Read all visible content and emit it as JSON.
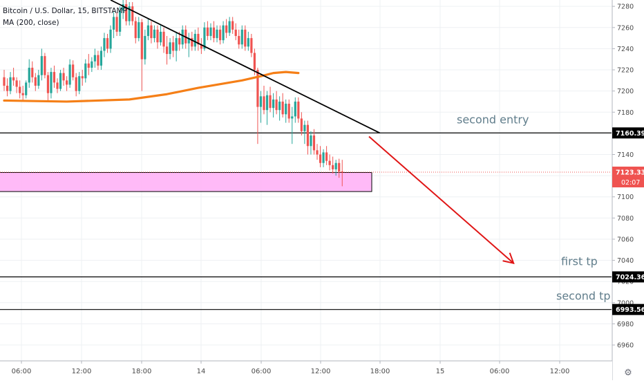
{
  "legend": {
    "symbol": "Bitcoin / U.S. Dollar, 15, BITSTAMP",
    "indicator": "MA (200, close)"
  },
  "colors": {
    "background": "#ffffff",
    "grid": "#eef0f3",
    "up_candle": "#26a69a",
    "down_candle": "#ef5350",
    "ma_line": "#f57f17",
    "trendline": "#000000",
    "arrow": "#e01515",
    "zone_fill": "#ffb3f6",
    "price_label_bg": "#000000",
    "last_price_bg": "#ef5350",
    "annotation_text": "#607d8b",
    "axis_text": "#4a4a4a"
  },
  "chart_data": {
    "type": "candlestick",
    "title": "Bitcoin / U.S. Dollar, 15, BITSTAMP",
    "interval": "15",
    "ylim": [
      6945,
      7286
    ],
    "y_ticks": [
      6960,
      6980,
      7000,
      7020,
      7040,
      7060,
      7080,
      7100,
      7120,
      7140,
      7160,
      7180,
      7200,
      7220,
      7240,
      7260,
      7280
    ],
    "x_ticks": [
      "06:00",
      "12:00",
      "18:00",
      "14",
      "06:00",
      "12:00",
      "18:00",
      "15",
      "06:00",
      "12:00"
    ],
    "grid": true,
    "legend_position": "top-left",
    "candle_count": 110,
    "candles_ohlc": [
      [
        7213,
        7220,
        7200,
        7205
      ],
      [
        7205,
        7212,
        7195,
        7200
      ],
      [
        7200,
        7218,
        7197,
        7213
      ],
      [
        7213,
        7222,
        7205,
        7210
      ],
      [
        7210,
        7213,
        7198,
        7204
      ],
      [
        7204,
        7210,
        7193,
        7198
      ],
      [
        7198,
        7205,
        7190,
        7196
      ],
      [
        7196,
        7210,
        7193,
        7208
      ],
      [
        7208,
        7230,
        7203,
        7222
      ],
      [
        7222,
        7228,
        7208,
        7213
      ],
      [
        7213,
        7217,
        7200,
        7205
      ],
      [
        7205,
        7220,
        7202,
        7215
      ],
      [
        7215,
        7240,
        7210,
        7233
      ],
      [
        7233,
        7236,
        7212,
        7215
      ],
      [
        7215,
        7218,
        7190,
        7198
      ],
      [
        7198,
        7222,
        7193,
        7218
      ],
      [
        7218,
        7224,
        7203,
        7208
      ],
      [
        7208,
        7212,
        7198,
        7202
      ],
      [
        7202,
        7220,
        7200,
        7217
      ],
      [
        7217,
        7222,
        7205,
        7210
      ],
      [
        7210,
        7214,
        7200,
        7206
      ],
      [
        7206,
        7230,
        7203,
        7225
      ],
      [
        7225,
        7229,
        7210,
        7213
      ],
      [
        7213,
        7217,
        7195,
        7200
      ],
      [
        7200,
        7218,
        7197,
        7214
      ],
      [
        7214,
        7220,
        7205,
        7212
      ],
      [
        7212,
        7230,
        7208,
        7226
      ],
      [
        7226,
        7235,
        7215,
        7222
      ],
      [
        7222,
        7232,
        7218,
        7228
      ],
      [
        7228,
        7240,
        7222,
        7234
      ],
      [
        7234,
        7238,
        7220,
        7224
      ],
      [
        7224,
        7242,
        7220,
        7238
      ],
      [
        7238,
        7255,
        7232,
        7250
      ],
      [
        7250,
        7254,
        7236,
        7240
      ],
      [
        7240,
        7262,
        7236,
        7258
      ],
      [
        7258,
        7275,
        7250,
        7270
      ],
      [
        7270,
        7274,
        7252,
        7256
      ],
      [
        7256,
        7280,
        7252,
        7276
      ],
      [
        7276,
        7286,
        7268,
        7282
      ],
      [
        7282,
        7286,
        7262,
        7266
      ],
      [
        7266,
        7284,
        7262,
        7280
      ],
      [
        7280,
        7284,
        7262,
        7266
      ],
      [
        7266,
        7270,
        7245,
        7250
      ],
      [
        7250,
        7270,
        7247,
        7265
      ],
      [
        7265,
        7268,
        7200,
        7230
      ],
      [
        7230,
        7258,
        7225,
        7252
      ],
      [
        7252,
        7268,
        7248,
        7262
      ],
      [
        7262,
        7266,
        7245,
        7250
      ],
      [
        7250,
        7262,
        7246,
        7258
      ],
      [
        7258,
        7262,
        7240,
        7246
      ],
      [
        7246,
        7262,
        7243,
        7256
      ],
      [
        7256,
        7260,
        7236,
        7242
      ],
      [
        7242,
        7252,
        7225,
        7235
      ],
      [
        7235,
        7250,
        7230,
        7246
      ],
      [
        7246,
        7252,
        7232,
        7238
      ],
      [
        7238,
        7255,
        7228,
        7250
      ],
      [
        7250,
        7256,
        7238,
        7244
      ],
      [
        7244,
        7262,
        7240,
        7258
      ],
      [
        7258,
        7262,
        7240,
        7245
      ],
      [
        7245,
        7255,
        7232,
        7250
      ],
      [
        7250,
        7256,
        7238,
        7242
      ],
      [
        7242,
        7258,
        7238,
        7254
      ],
      [
        7254,
        7260,
        7238,
        7244
      ],
      [
        7244,
        7250,
        7235,
        7240
      ],
      [
        7240,
        7265,
        7238,
        7260
      ],
      [
        7260,
        7266,
        7248,
        7252
      ],
      [
        7252,
        7264,
        7248,
        7260
      ],
      [
        7260,
        7266,
        7246,
        7250
      ],
      [
        7250,
        7262,
        7246,
        7258
      ],
      [
        7258,
        7262,
        7244,
        7248
      ],
      [
        7248,
        7266,
        7245,
        7262
      ],
      [
        7262,
        7268,
        7250,
        7255
      ],
      [
        7255,
        7270,
        7252,
        7266
      ],
      [
        7266,
        7270,
        7254,
        7258
      ],
      [
        7258,
        7264,
        7248,
        7252
      ],
      [
        7252,
        7258,
        7240,
        7244
      ],
      [
        7244,
        7262,
        7240,
        7258
      ],
      [
        7258,
        7262,
        7238,
        7242
      ],
      [
        7242,
        7256,
        7238,
        7250
      ],
      [
        7250,
        7254,
        7232,
        7236
      ],
      [
        7236,
        7240,
        7215,
        7220
      ],
      [
        7220,
        7222,
        7150,
        7185
      ],
      [
        7185,
        7200,
        7170,
        7195
      ],
      [
        7195,
        7205,
        7178,
        7182
      ],
      [
        7182,
        7200,
        7168,
        7196
      ],
      [
        7196,
        7204,
        7180,
        7184
      ],
      [
        7184,
        7198,
        7175,
        7192
      ],
      [
        7192,
        7200,
        7178,
        7182
      ],
      [
        7182,
        7195,
        7172,
        7190
      ],
      [
        7190,
        7198,
        7175,
        7178
      ],
      [
        7178,
        7192,
        7170,
        7188
      ],
      [
        7188,
        7192,
        7170,
        7174
      ],
      [
        7174,
        7185,
        7150,
        7176
      ],
      [
        7176,
        7194,
        7170,
        7190
      ],
      [
        7190,
        7194,
        7170,
        7174
      ],
      [
        7174,
        7180,
        7158,
        7162
      ],
      [
        7162,
        7172,
        7150,
        7168
      ],
      [
        7168,
        7172,
        7140,
        7148
      ],
      [
        7148,
        7162,
        7140,
        7158
      ],
      [
        7158,
        7164,
        7140,
        7144
      ],
      [
        7144,
        7150,
        7135,
        7140
      ],
      [
        7140,
        7148,
        7128,
        7132
      ],
      [
        7132,
        7145,
        7128,
        7142
      ],
      [
        7142,
        7148,
        7130,
        7134
      ],
      [
        7134,
        7140,
        7125,
        7130
      ],
      [
        7130,
        7138,
        7122,
        7126
      ],
      [
        7126,
        7135,
        7120,
        7132
      ],
      [
        7132,
        7136,
        7118,
        7124
      ],
      [
        7124,
        7135,
        7110,
        7123
      ]
    ],
    "ma_200": {
      "name": "MA (200, close)",
      "points": [
        [
          0,
          7191
        ],
        [
          20,
          7190
        ],
        [
          40,
          7192
        ],
        [
          52,
          7197
        ],
        [
          62,
          7203
        ],
        [
          70,
          7207
        ],
        [
          76,
          7210
        ],
        [
          82,
          7214
        ],
        [
          86,
          7217
        ],
        [
          90,
          7218
        ],
        [
          94,
          7217
        ]
      ]
    },
    "horizontal_levels": [
      {
        "value": 7160.39,
        "label": "7160.39",
        "annotation": "second entry"
      },
      {
        "value": 7024.36,
        "label": "7024.36",
        "annotation": "first tp"
      },
      {
        "value": 6993.56,
        "label": "6993.56",
        "annotation": "second tp"
      }
    ],
    "last_price": {
      "value": 7123.33,
      "label": "7123.33",
      "countdown": "02:07"
    },
    "zone": {
      "from_index": -2,
      "to_index": 102,
      "top": 7123,
      "bottom": 7105
    },
    "trendline": {
      "from": [
        34,
        7286
      ],
      "to": [
        120,
        7160.39
      ]
    },
    "arrow": {
      "from": [
        100,
        7155
      ],
      "to": [
        140,
        7036
      ]
    }
  },
  "icons": {
    "scale_settings": "gear-icon"
  }
}
